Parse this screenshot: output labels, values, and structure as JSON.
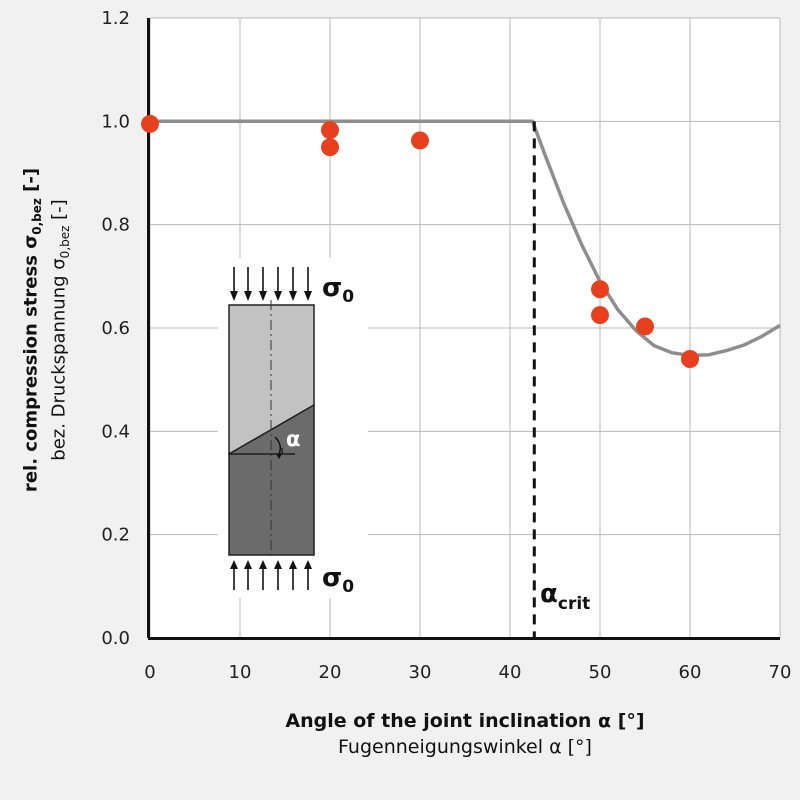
{
  "chart_data": {
    "type": "scatter",
    "xlim": [
      0,
      70
    ],
    "ylim": [
      0.0,
      1.2
    ],
    "x_ticks": [
      "0",
      "10",
      "20",
      "30",
      "40",
      "50",
      "60",
      "70"
    ],
    "y_ticks": [
      "0.0",
      "0.2",
      "0.4",
      "0.6",
      "0.8",
      "1.0",
      "1.2"
    ],
    "grid": true,
    "xlabel": "Angle of the joint inclination α [°]",
    "xlabel_secondary": "Fugenneigungswinkel α [°]",
    "ylabel_prefix": "rel. compression stress σ",
    "ylabel_secondary_prefix": "bez. Druckspannung σ",
    "ylabel_subscript": "0,bez",
    "ylabel_suffix": " [-]",
    "points": [
      {
        "x": 0,
        "y": 0.995
      },
      {
        "x": 20,
        "y": 0.983
      },
      {
        "x": 20,
        "y": 0.95
      },
      {
        "x": 30,
        "y": 0.963
      },
      {
        "x": 50,
        "y": 0.675
      },
      {
        "x": 50,
        "y": 0.625
      },
      {
        "x": 55,
        "y": 0.603
      },
      {
        "x": 60,
        "y": 0.54
      }
    ],
    "fit_curve": [
      {
        "x": 0,
        "y": 1.0
      },
      {
        "x": 42.5,
        "y": 1.0
      },
      {
        "x": 44,
        "y": 0.93
      },
      {
        "x": 46,
        "y": 0.84
      },
      {
        "x": 48,
        "y": 0.76
      },
      {
        "x": 50,
        "y": 0.69
      },
      {
        "x": 52,
        "y": 0.635
      },
      {
        "x": 54,
        "y": 0.595
      },
      {
        "x": 56,
        "y": 0.566
      },
      {
        "x": 58,
        "y": 0.552
      },
      {
        "x": 60,
        "y": 0.547
      },
      {
        "x": 62,
        "y": 0.548
      },
      {
        "x": 64,
        "y": 0.556
      },
      {
        "x": 66,
        "y": 0.567
      },
      {
        "x": 68,
        "y": 0.584
      },
      {
        "x": 70,
        "y": 0.605
      }
    ],
    "critical_angle": 42.7,
    "critical_label": "α",
    "critical_subscript": "crit",
    "inset": {
      "alpha_label": "α",
      "stress_label": "σ",
      "stress_subscript": "0"
    },
    "colors": {
      "points": "#e8401f",
      "curve": "#8e8e8e",
      "grid": "#b9b9b9",
      "plot_bg": "#ffffff",
      "inset_upper": "#c2c2c2",
      "inset_lower": "#6b6b6b"
    }
  }
}
